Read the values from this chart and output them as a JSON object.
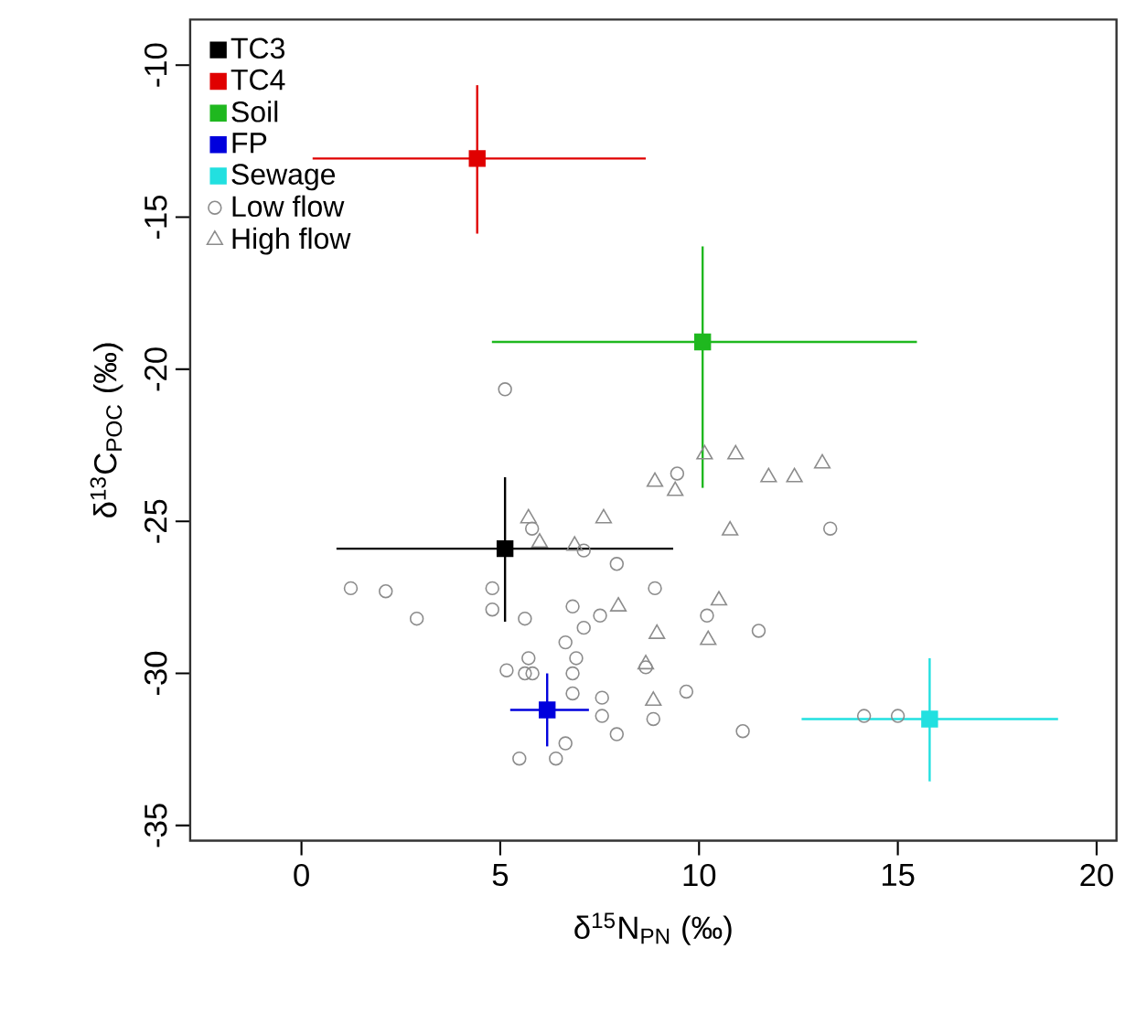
{
  "chart_data": {
    "type": "scatter",
    "xlabel": "δ$^{15}$N$_{PN}$ (‰)",
    "ylabel": "δ$^{13}$C$_{POC}$ (‰)",
    "xlim": [
      -2.8,
      20.5
    ],
    "ylim": [
      -35.5,
      -8.5
    ],
    "xticks": [
      0,
      5,
      10,
      15,
      20
    ],
    "yticks": [
      -35,
      -30,
      -25,
      -20,
      -15,
      -10
    ],
    "legend": "top left",
    "grid": false,
    "series": [
      {
        "name": "TC3",
        "color": "#000000",
        "marker": "square",
        "x": [
          5.12
        ],
        "values": [
          -25.9
        ],
        "xerrors": [
          [
            0.88,
            9.35
          ]
        ],
        "errors": [
          [
            -28.3,
            -23.55
          ]
        ]
      },
      {
        "name": "TC4",
        "color": "#e00000",
        "marker": "square",
        "x": [
          4.42
        ],
        "values": [
          -13.07
        ],
        "xerrors": [
          [
            0.28,
            8.66
          ]
        ],
        "errors": [
          [
            -15.54,
            -10.66
          ]
        ]
      },
      {
        "name": "Soil",
        "color": "#1fb81f",
        "marker": "square",
        "x": [
          10.09
        ],
        "values": [
          -19.1
        ],
        "xerrors": [
          [
            4.79,
            15.48
          ]
        ],
        "errors": [
          [
            -23.9,
            -15.96
          ]
        ]
      },
      {
        "name": "FP",
        "color": "#0000dd",
        "marker": "square",
        "x": [
          6.18
        ],
        "values": [
          -31.2
        ],
        "xerrors": [
          [
            5.25,
            7.23
          ]
        ],
        "errors": [
          [
            -32.4,
            -30.0
          ]
        ]
      },
      {
        "name": "Sewage",
        "color": "#22e0e0",
        "marker": "square",
        "x": [
          15.8
        ],
        "values": [
          -31.5
        ],
        "xerrors": [
          [
            12.58,
            19.03
          ]
        ],
        "errors": [
          [
            -33.55,
            -29.5
          ]
        ]
      },
      {
        "name": "Low flow",
        "color": "#8c8c8c",
        "marker": "circle",
        "x": [
          5.12,
          9.45,
          5.8,
          7.1,
          7.93,
          1.24,
          2.12,
          2.9,
          4.8,
          4.8,
          8.89,
          5.62,
          6.82,
          7.51,
          7.1,
          6.64,
          5.71,
          6.91,
          5.16,
          5.62,
          5.81,
          6.82,
          6.82,
          7.56,
          7.56,
          8.66,
          8.85,
          9.68,
          7.93,
          6.64,
          5.48,
          6.4,
          11.1,
          14.15,
          15.0,
          13.3,
          10.2,
          11.5
        ],
        "values": [
          -20.66,
          -23.43,
          -25.24,
          -25.96,
          -26.4,
          -27.2,
          -27.3,
          -28.2,
          -27.2,
          -27.9,
          -27.2,
          -28.2,
          -27.8,
          -28.1,
          -28.5,
          -28.98,
          -29.5,
          -29.5,
          -29.9,
          -30.0,
          -30.0,
          -30.0,
          -30.66,
          -30.8,
          -31.4,
          -29.8,
          -31.5,
          -30.6,
          -32.0,
          -32.3,
          -32.8,
          -32.8,
          -31.9,
          -31.4,
          -31.4,
          -25.24,
          -28.1,
          -28.6
        ]
      },
      {
        "name": "High flow",
        "color": "#8c8c8c",
        "marker": "triangle",
        "x": [
          5.71,
          5.99,
          6.87,
          7.6,
          8.89,
          9.4,
          7.97,
          8.94,
          8.66,
          10.14,
          10.92,
          11.75,
          12.4,
          13.1,
          10.78,
          10.5,
          10.23,
          8.85
        ],
        "values": [
          -24.9,
          -25.7,
          -25.8,
          -24.9,
          -23.7,
          -24.0,
          -27.8,
          -28.7,
          -29.7,
          -22.8,
          -22.8,
          -23.55,
          -23.55,
          -23.1,
          -25.3,
          -27.6,
          -28.9,
          -30.9
        ]
      }
    ]
  }
}
